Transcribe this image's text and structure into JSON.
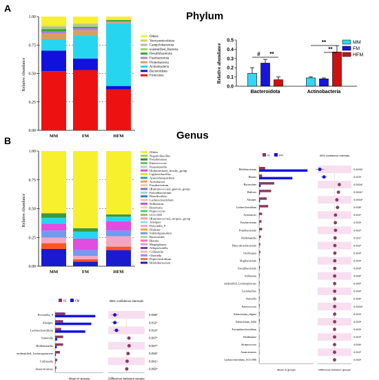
{
  "panel_a": {
    "label": "A",
    "title": "Phylum",
    "stacked": {
      "ylabel": "Relative Abundance",
      "yticks": [
        "0.00",
        "0.25",
        "0.50",
        "0.75",
        "1.00"
      ],
      "categories": [
        "MM",
        "FM",
        "HFM"
      ],
      "legend": [
        "Others",
        "Verrucomicrobiota",
        "Campylobacterota",
        "unidentified_Bacteria",
        "Desulfobacterota",
        "Fusobacteriota",
        "Proteobacteria",
        "Actinobacteria",
        "Bacteroidetes",
        "Firmicutes"
      ],
      "colors": [
        "#f7f02c",
        "#cfcf6a",
        "#b7b7b7",
        "#9ad36b",
        "#2ea82e",
        "#b07de0",
        "#d8a060",
        "#26d6f0",
        "#1111dd",
        "#ee1111"
      ]
    },
    "bar": {
      "ylabel": "Relative abundance",
      "yticks": [
        "0.0",
        "0.1",
        "0.2",
        "0.3",
        "0.4",
        "0.5"
      ],
      "legend": [
        "MM",
        "FM",
        "HFM"
      ],
      "colors": [
        "#33d6f5",
        "#1515dd",
        "#cc1111"
      ],
      "annotations": [
        "#",
        "**",
        "**",
        "**"
      ]
    }
  },
  "panel_b": {
    "label": "B",
    "title": "Genus",
    "stacked": {
      "ylabel": "Relative Abundance",
      "yticks": [
        "0.00",
        "0.25",
        "0.50",
        "0.75",
        "1.00"
      ],
      "categories": [
        "MM",
        "FM",
        "HFM"
      ],
      "legend": [
        "Others",
        "Negativibacillus",
        "Pseudomonas",
        "Enterococcus",
        "Parasutterella",
        "[Eubacterium]_brachy_group",
        "Ligilactobacillus",
        "Anaerobiospirillum",
        "Acetobacter",
        "Fusobacterium",
        "[Ruminococcus]_gnavus_group",
        "Faecalibacterium",
        "Desulfovibrio",
        "Lachnoclostridium",
        "Sellimonas",
        "Roseburia",
        "Peptococcus",
        "UCG-005",
        "[Ruminococcus]_torques_group",
        "Alistipes",
        "Prevotella_9",
        "Dialister",
        "Subdoligranulum",
        "Bacteroides",
        "Blautia",
        "Megasphaera",
        "Alloprevotella",
        "Collinsella",
        "Olsenella",
        "Peptoclostridium",
        "Bifidobacterium"
      ]
    },
    "small": {
      "legend": [
        "IS",
        "FM"
      ],
      "colors": [
        "#8b3a62",
        "#1515dd"
      ],
      "ci_title": "95% confidence intervals",
      "xlabel_left": "Mean in groups",
      "xlabel_right": "Difference between groups",
      "taxa": [
        "Prevotella_9",
        "Alistipes",
        "Lachnoclostridium",
        "Sutterella",
        "Holdemanella",
        "unidentified_Lachnospiraceae",
        "Collinsella",
        "Anaerotruncus"
      ],
      "pvals": [
        "0.038*",
        "0.011*",
        "0.014*",
        "0.047*",
        "0.047*",
        "0.046*",
        "0.041*",
        "0.050*"
      ]
    },
    "big": {
      "legend": [
        "IS",
        "FM"
      ],
      "ci_title": "95% confidence intervals",
      "xlabel_left": "Mean in groups",
      "xlabel_right": "Difference between groups",
      "taxa": [
        "Bifidobacterium",
        "Blautia",
        "Bacteroides",
        "Dialister",
        "Alistipes",
        "Lachnoclostridium",
        "Acetobacter",
        "Fusobacterium",
        "Psudobacterium",
        "Holdemanella",
        "Phascolarctobacterium",
        "Oscillospira",
        "Mogibacterium",
        "Faecalibacterium",
        "Sellimonas",
        "unidentified_Lachnospiraceae",
        "Lactobacillus",
        "Sutterella",
        "Enterococcus",
        "Eubacterium_eligens",
        "Eubacterium_hallii",
        "Erysipelatoclostridium",
        "Holdemania",
        "Streptococcus",
        "Anaerotruncus",
        "Lachnoclostridium_UCG-006"
      ],
      "pvals": [
        "0.0000*",
        "0.023*",
        "0.0004*",
        "0.0001*",
        "0.0004*",
        "0.008*",
        "0.002*",
        "0.003*",
        "0.002*",
        "0.021*",
        "0.002*",
        "0.004*",
        "0.004*",
        "0.009*",
        "0.006*",
        "0.000*",
        "0.004*",
        "0.006*",
        "0.0004*",
        "0.003*",
        "0.003*",
        "0.003*",
        "0.003*",
        "0.006*",
        "0.002*",
        "0.000*"
      ]
    }
  },
  "chart_data": [
    {
      "type": "bar",
      "stacked": true,
      "title": "Phylum",
      "ylabel": "Relative Abundance",
      "categories": [
        "MM",
        "FM",
        "HFM"
      ],
      "ylim": [
        0,
        1
      ],
      "series": [
        {
          "name": "Firmicutes",
          "values": [
            0.52,
            0.53,
            0.36
          ]
        },
        {
          "name": "Bacteroidetes",
          "values": [
            0.18,
            0.1,
            0.03
          ]
        },
        {
          "name": "Actinobacteria",
          "values": [
            0.1,
            0.2,
            0.55
          ]
        },
        {
          "name": "Proteobacteria",
          "values": [
            0.05,
            0.05,
            0.01
          ]
        },
        {
          "name": "Fusobacteriota",
          "values": [
            0.02,
            0.02,
            0.01
          ]
        },
        {
          "name": "Desulfobacterota",
          "values": [
            0.02,
            0.01,
            0.01
          ]
        },
        {
          "name": "unidentified_Bacteria",
          "values": [
            0.01,
            0.01,
            0.0
          ]
        },
        {
          "name": "Campylobacterota",
          "values": [
            0.01,
            0.01,
            0.0
          ]
        },
        {
          "name": "Verrucomicrobiota",
          "values": [
            0.01,
            0.01,
            0.0
          ]
        },
        {
          "name": "Others",
          "values": [
            0.08,
            0.06,
            0.03
          ]
        }
      ]
    },
    {
      "type": "bar",
      "ylabel": "Relative abundance",
      "categories": [
        "Bacteroidota",
        "Actinobacteria"
      ],
      "ylim": [
        0,
        0.5
      ],
      "series": [
        {
          "name": "MM",
          "values": [
            0.14,
            0.09
          ],
          "errors": [
            0.06,
            0.01
          ]
        },
        {
          "name": "FM",
          "values": [
            0.25,
            0.08
          ],
          "errors": [
            0.04,
            0.01
          ]
        },
        {
          "name": "HFM",
          "values": [
            0.07,
            0.37
          ],
          "errors": [
            0.03,
            0.07
          ]
        }
      ]
    },
    {
      "type": "bar",
      "stacked": true,
      "title": "Genus",
      "ylabel": "Relative Abundance",
      "categories": [
        "MM",
        "FM",
        "HFM"
      ],
      "ylim": [
        0,
        1
      ],
      "series": [
        {
          "name": "Bifidobacterium",
          "values": [
            0.15,
            0.04,
            0.14
          ]
        },
        {
          "name": "Peptoclostridium",
          "values": [
            0.05,
            0.02,
            0.03
          ]
        },
        {
          "name": "Collinsella",
          "values": [
            0.05,
            0.03,
            0.09
          ]
        },
        {
          "name": "Bacteroides",
          "values": [
            0.06,
            0.05,
            0.05
          ]
        },
        {
          "name": "Prevotella_9",
          "values": [
            0.06,
            0.1,
            0.08
          ]
        },
        {
          "name": "Alistipes",
          "values": [
            0.05,
            0.06,
            0.04
          ]
        },
        {
          "name": "[Ruminococcus]_gnavus_group",
          "values": [
            0.04,
            0.03,
            0.02
          ]
        },
        {
          "name": "Others",
          "values": [
            0.54,
            0.67,
            0.55
          ]
        }
      ]
    },
    {
      "type": "bar",
      "title": "95% confidence intervals",
      "categories": [
        "Prevotella_9",
        "Alistipes",
        "Lachnoclostridium",
        "Sutterella",
        "Holdemanella",
        "unidentified_Lachnospiraceae",
        "Collinsella",
        "Anaerotruncus"
      ],
      "series": [
        {
          "name": "IS",
          "values": [
            0.025,
            0.02,
            0.015,
            0.02,
            0.02,
            0.012,
            0.005,
            0.003
          ]
        },
        {
          "name": "FM",
          "values": [
            0.1,
            0.09,
            0.075,
            0.005,
            0.004,
            0.002,
            0.001,
            0.001
          ]
        },
        {
          "name": "Difference",
          "values": [
            -0.07,
            -0.07,
            -0.06,
            0.015,
            0.016,
            0.01,
            0.004,
            0.002
          ]
        }
      ]
    },
    {
      "type": "bar",
      "title": "95% confidence intervals",
      "categories": [
        "Bifidobacterium",
        "Blautia",
        "Bacteroides",
        "Dialister",
        "Alistipes",
        "Lachnoclostridium",
        "Acetobacter",
        "Fusobacterium",
        "Psudobacterium",
        "Holdemanella",
        "Phascolarctobacterium",
        "Oscillospira",
        "Mogibacterium",
        "Faecalibacterium",
        "Sellimonas",
        "unidentified_Lachnospiraceae",
        "Lactobacillus",
        "Sutterella",
        "Enterococcus",
        "Eubacterium_eligens",
        "Eubacterium_hallii",
        "Erysipelatoclostridium",
        "Holdemania",
        "Streptococcus",
        "Anaerotruncus",
        "Lachnoclostridium_UCG-006"
      ],
      "series": [
        {
          "name": "IS",
          "values": [
            0.02,
            0.01,
            0.05,
            0.04,
            0.025,
            0.03,
            0.01,
            0.008,
            0.01,
            0.006,
            0.004,
            0.004,
            0.003,
            0.003,
            0.002,
            0.002,
            0.002,
            0.002,
            0.002,
            0.002,
            0.002,
            0.001,
            0.001,
            0.001,
            0.001,
            0.001
          ]
        },
        {
          "name": "FM",
          "values": [
            0.16,
            0.11,
            0.005,
            0.003,
            0.003,
            0.002,
            0.001,
            0.001,
            0.001,
            0.001,
            0.001,
            0.001,
            0.001,
            0.001,
            0.001,
            0.001,
            0.001,
            0.001,
            0.001,
            0.001,
            0.001,
            0.001,
            0.001,
            0.001,
            0.001,
            0.001
          ]
        },
        {
          "name": "Difference",
          "values": [
            -0.14,
            -0.1,
            0.045,
            0.037,
            0.022,
            0.028,
            0.009,
            0.007,
            0.009,
            0.005,
            0.003,
            0.003,
            0.002,
            0.002,
            0.001,
            0.001,
            0.001,
            0.001,
            0.001,
            0.001,
            0.001,
            0.0,
            0.0,
            0.0,
            0.0,
            0.0
          ]
        }
      ]
    }
  ]
}
